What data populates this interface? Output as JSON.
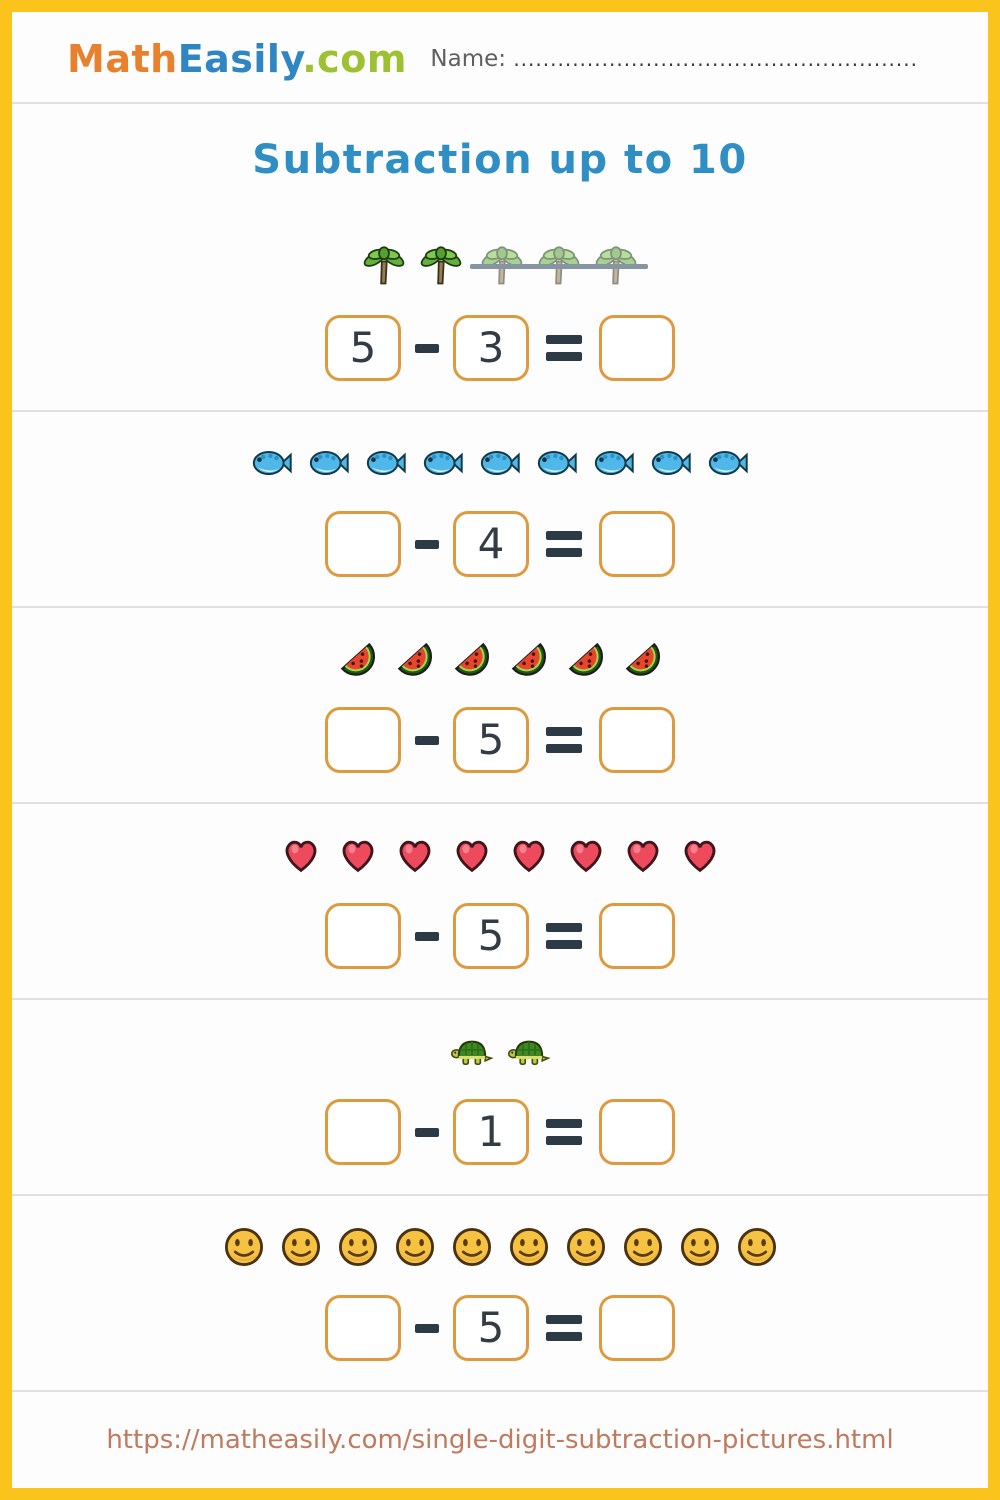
{
  "header": {
    "logo_math": "Math",
    "logo_easily": "Easily",
    "logo_com": ".com",
    "name_label": "Name:",
    "name_dots": "......................................................."
  },
  "title": "Subtraction up to 10",
  "operators": {
    "minus": "-",
    "equals": "="
  },
  "problems": [
    {
      "icon": "palm-tree",
      "count": 5,
      "struck": 3,
      "minuend": "5",
      "subtrahend": "3",
      "result": ""
    },
    {
      "icon": "fish",
      "count": 9,
      "struck": 0,
      "minuend": "",
      "subtrahend": "4",
      "result": ""
    },
    {
      "icon": "watermelon",
      "count": 6,
      "struck": 0,
      "minuend": "",
      "subtrahend": "5",
      "result": ""
    },
    {
      "icon": "heart",
      "count": 8,
      "struck": 0,
      "minuend": "",
      "subtrahend": "5",
      "result": ""
    },
    {
      "icon": "turtle",
      "count": 2,
      "struck": 0,
      "minuend": "",
      "subtrahend": "1",
      "result": ""
    },
    {
      "icon": "smiley",
      "count": 10,
      "struck": 0,
      "minuend": "",
      "subtrahend": "5",
      "result": ""
    }
  ],
  "footer": {
    "url": "https://matheasily.com/single-digit-subtraction-pictures.html"
  },
  "colors": {
    "frame-yellow": "#FAC41C",
    "page-bg": "#FDFDFD",
    "logo-orange": "#E8812D",
    "logo-blue": "#2F86C2",
    "logo-green": "#9DC131",
    "title-blue": "#2F8FC5",
    "box-border": "#DE9A3E",
    "number-ink": "#333B45",
    "operator-ink": "#2C3A46",
    "divider": "#E0E0E0",
    "footer-link": "#C07A5F",
    "strike-gray": "#8695A2",
    "name-gray": "#5F5F5F"
  }
}
